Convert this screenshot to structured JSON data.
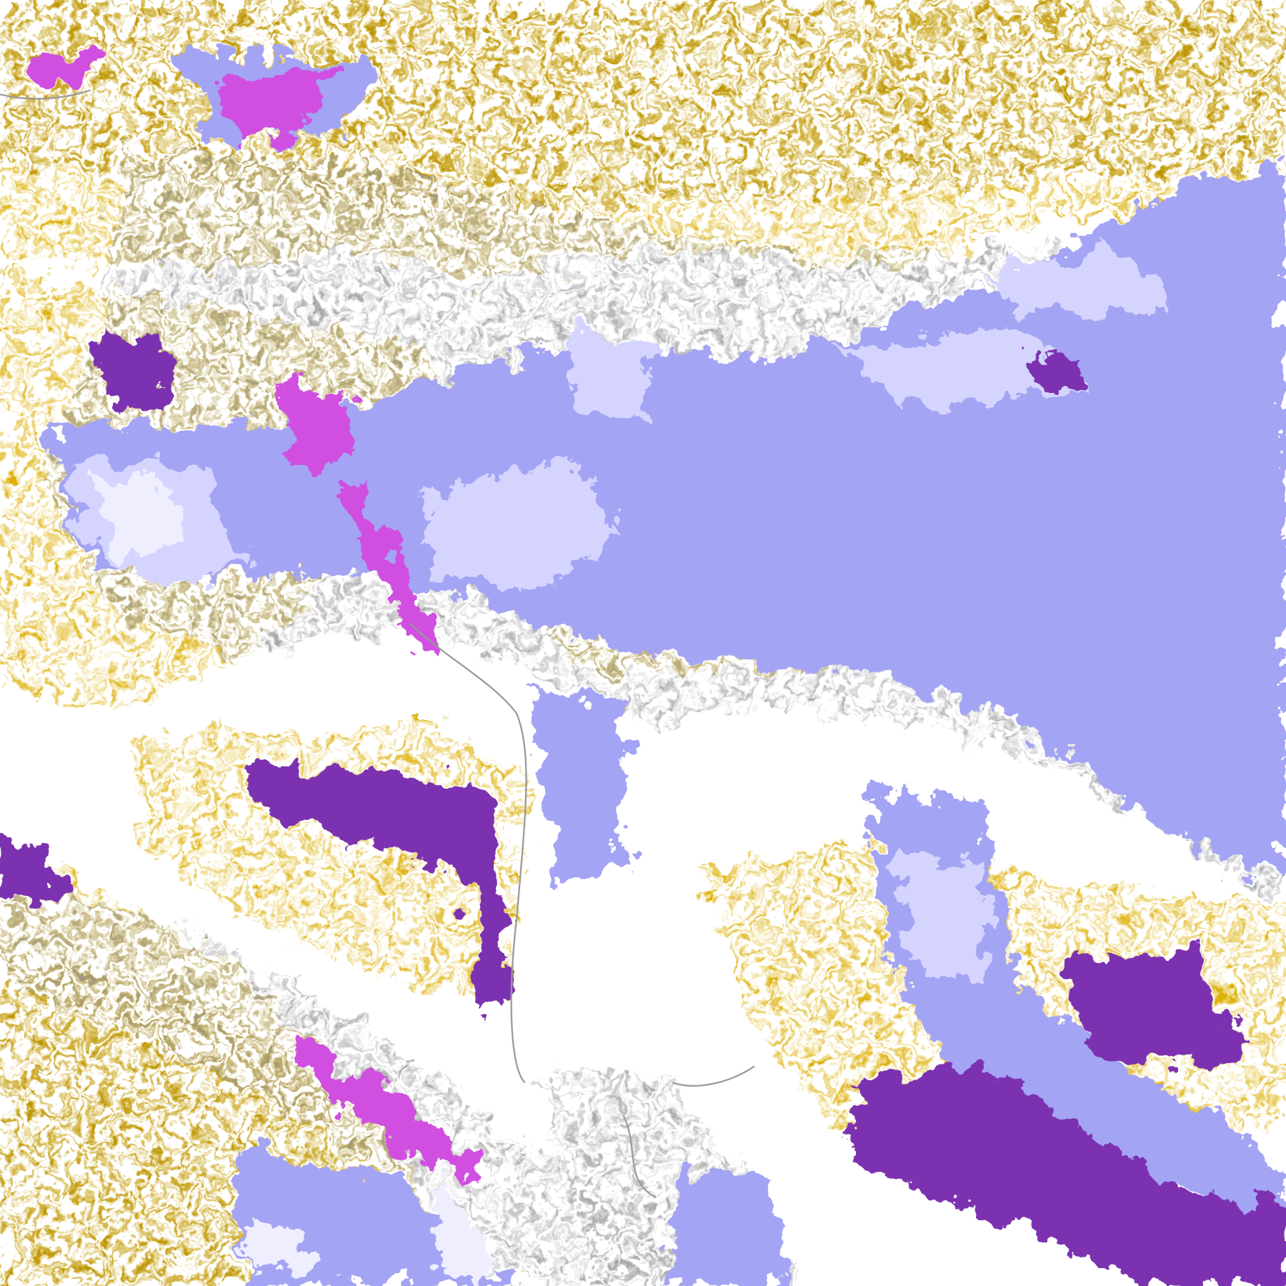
{
  "map": {
    "palette": {
      "background": "#ffffff",
      "gold": "#dcae00",
      "dark_gold": "#b08a00",
      "gray": "#9a9a9a",
      "lavender": "#a4a4f4",
      "light_lavender": "#d4d4ff",
      "pale": "#eeeeff",
      "purple": "#7b32b0",
      "magenta": "#d050e0"
    }
  }
}
